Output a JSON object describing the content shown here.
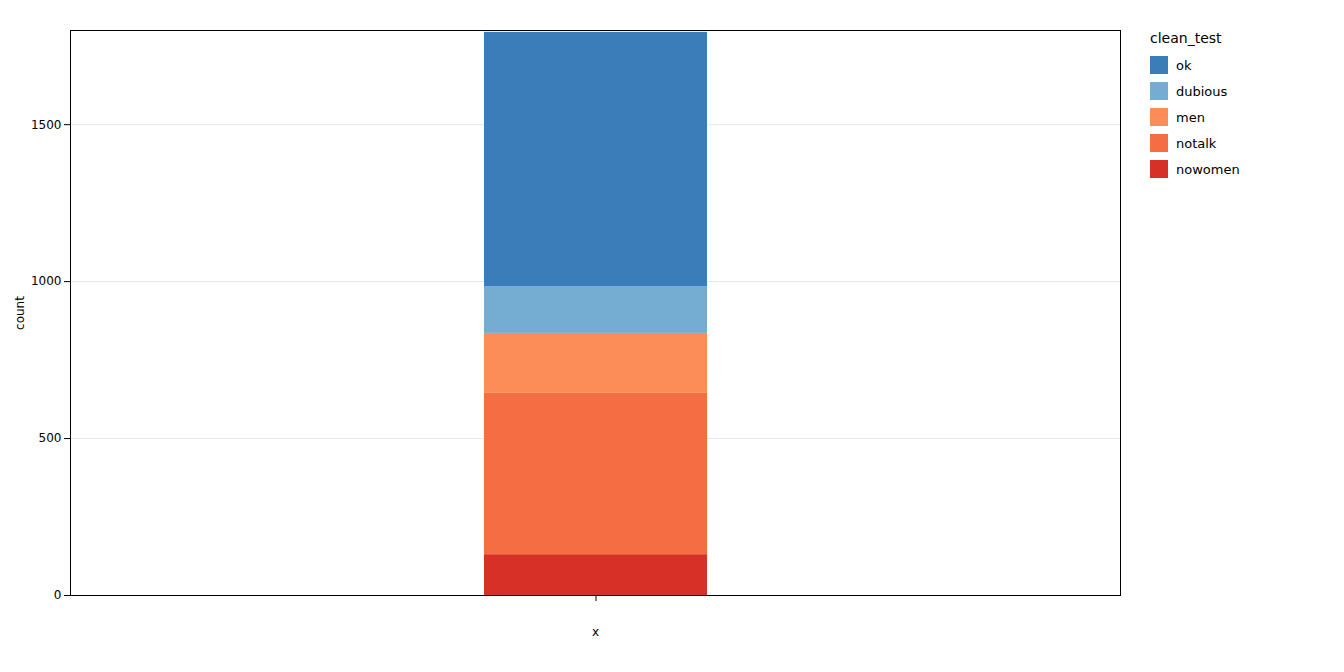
{
  "chart_data": {
    "type": "bar",
    "stacked": true,
    "categories": [
      null
    ],
    "series": [
      {
        "name": "nowomen",
        "color": "#D73027",
        "values": [
          130
        ]
      },
      {
        "name": "notalk",
        "color": "#F46D43",
        "values": [
          514
        ]
      },
      {
        "name": "men",
        "color": "#FC8D59",
        "values": [
          191
        ]
      },
      {
        "name": "dubious",
        "color": "#74ADD1",
        "values": [
          148
        ]
      },
      {
        "name": "ok",
        "color": "#3A7DB8",
        "values": [
          811
        ]
      }
    ],
    "xlabel": "x",
    "ylabel": "count",
    "legend_title": "clean_test",
    "ylim": [
      0,
      1800
    ],
    "yticks": [
      0,
      500,
      1000,
      1500
    ],
    "grid": true,
    "legend": "right"
  }
}
